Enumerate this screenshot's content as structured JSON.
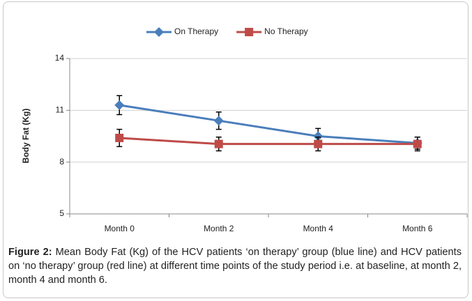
{
  "chart_data": {
    "type": "line",
    "categories": [
      "Month 0",
      "Month 2",
      "Month 4",
      "Month 6"
    ],
    "ylabel": "Body Fat (Kg)",
    "ylim": [
      5,
      14
    ],
    "yticks": [
      5,
      8,
      11,
      14
    ],
    "grid": true,
    "series": [
      {
        "name": "On Therapy",
        "color": "#4a7ebb",
        "marker": "diamond",
        "values": [
          11.3,
          10.4,
          9.5,
          9.1
        ],
        "errors": [
          0.55,
          0.5,
          0.45,
          0.35
        ]
      },
      {
        "name": "No Therapy",
        "color": "#be4b48",
        "marker": "square",
        "values": [
          9.4,
          9.05,
          9.05,
          9.05
        ],
        "errors": [
          0.5,
          0.4,
          0.4,
          0.4
        ]
      }
    ],
    "caption_label": "Figure 2:",
    "caption": " Mean Body Fat (Kg) of the HCV patients ‘on therapy’ group (blue line) and HCV patients on ‘no therapy’ group (red line) at different time points of the study period i.e. at baseline, at month 2, month 4 and month 6."
  }
}
